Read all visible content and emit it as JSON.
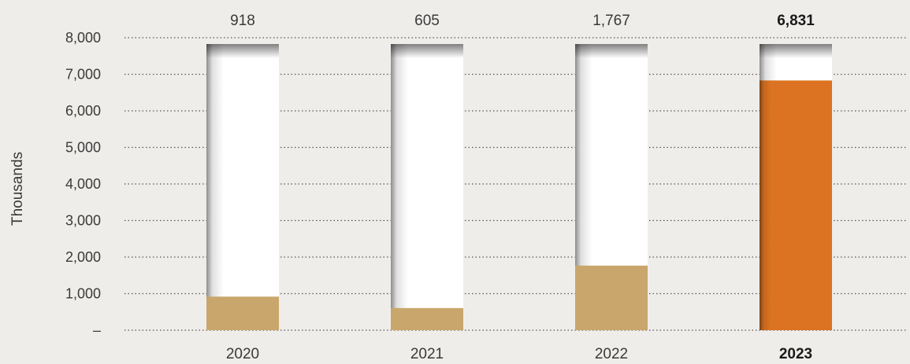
{
  "chart_data": {
    "type": "bar",
    "categories": [
      "2020",
      "2021",
      "2022",
      "2023"
    ],
    "values": [
      918,
      605,
      1767,
      6831
    ],
    "value_labels": [
      "918",
      "605",
      "1,767",
      "6,831"
    ],
    "ylabel": "Thousands",
    "ylim": [
      0,
      8000
    ],
    "yticks": [
      0,
      1000,
      2000,
      3000,
      4000,
      5000,
      6000,
      7000,
      8000
    ],
    "ytick_labels": [
      "–",
      "1,000",
      "2,000",
      "3,000",
      "4,000",
      "5,000",
      "6,000",
      "7,000",
      "8,000"
    ],
    "highlight_index": 3,
    "grid": "dotted-horizontal",
    "colors": {
      "bar": "#c9a66b",
      "highlight": "#db7322",
      "track": "#ffffff",
      "grid": "#555555",
      "background": "#efedea"
    }
  }
}
